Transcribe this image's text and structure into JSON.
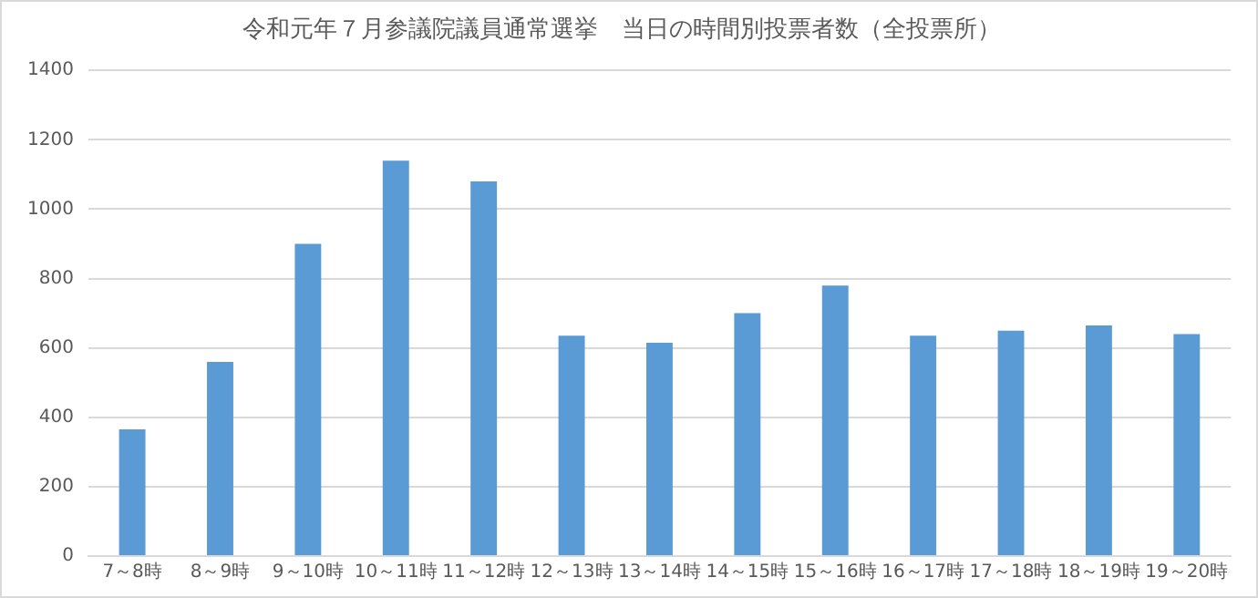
{
  "chart_data": {
    "type": "bar",
    "title": "令和元年７月参議院議員通常選挙　当日の時間別投票者数（全投票所）",
    "categories": [
      "7～8時",
      "8～9時",
      "9～10時",
      "10～11時",
      "11～12時",
      "12～13時",
      "13～14時",
      "14～15時",
      "15～16時",
      "16～17時",
      "17～18時",
      "18～19時",
      "19～20時"
    ],
    "values": [
      365,
      560,
      900,
      1140,
      1080,
      635,
      615,
      700,
      780,
      635,
      650,
      665,
      640
    ],
    "color": "#5b9bd5",
    "ylim": [
      0,
      1400
    ],
    "yticks": [
      0,
      200,
      400,
      600,
      800,
      1000,
      1200,
      1400
    ],
    "grid": "y"
  }
}
